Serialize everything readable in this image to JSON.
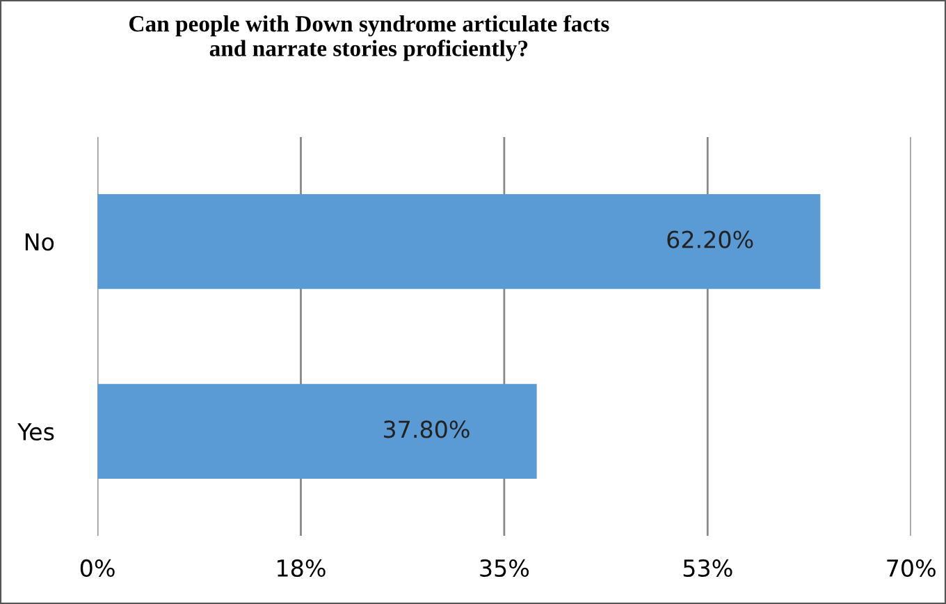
{
  "chart_data": {
    "type": "bar",
    "orientation": "horizontal",
    "title": "Can people with Down syndrome articulate facts\nand narrate stories proficiently?",
    "categories": [
      "No",
      "Yes"
    ],
    "values": [
      62.2,
      37.8
    ],
    "value_labels": [
      "62.20%",
      "37.80%"
    ],
    "color": "#5b9bd5",
    "xlim": [
      0,
      70
    ],
    "xticks": [
      {
        "value": 0,
        "label": "0%"
      },
      {
        "value": 17.5,
        "label": "18%"
      },
      {
        "value": 35,
        "label": "35%"
      },
      {
        "value": 52.5,
        "label": "53%"
      },
      {
        "value": 70,
        "label": "70%"
      }
    ],
    "grid": "x",
    "legend": false
  }
}
